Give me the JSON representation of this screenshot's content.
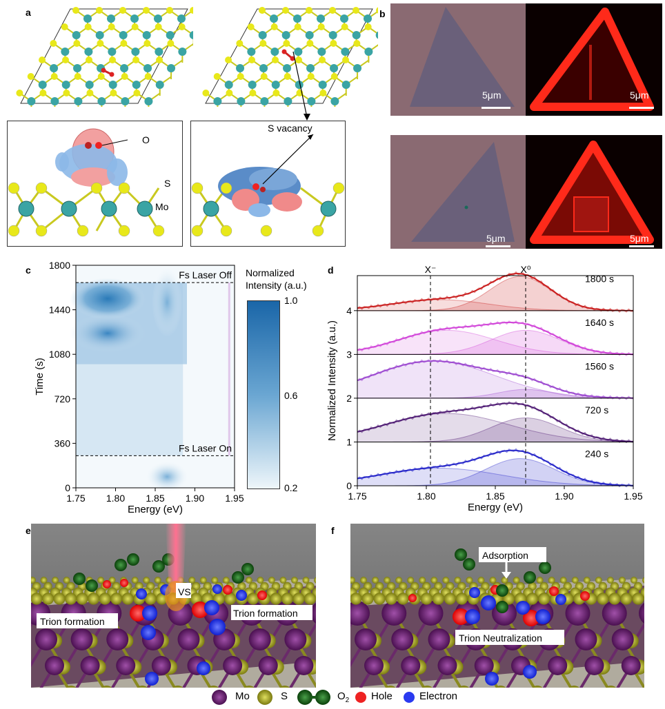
{
  "panels": {
    "a": {
      "label": "a",
      "oxygen_label": "O",
      "sulfur_label": "S",
      "mo_label": "Mo",
      "vacancy_label": "S vacancy"
    },
    "b": {
      "label": "b",
      "scale_bar": "5μm"
    },
    "c": {
      "label": "c",
      "laser_off": "Fs Laser Off",
      "laser_on": "Fs Laser On",
      "colorbar_title_1": "Normalized",
      "colorbar_title_2": "Intensity (a.u.)",
      "colorbar_ticks": [
        "1.0",
        "0.6",
        "0.2"
      ]
    },
    "d": {
      "label": "d",
      "peak_labels": [
        "X⁻",
        "X⁰"
      ],
      "time_labels": [
        "1800 s",
        "1640 s",
        "1560 s",
        "720 s",
        "240 s"
      ]
    },
    "e": {
      "label": "e",
      "vs_label": "VS",
      "trion_left": "Trion formation",
      "trion_right": "Trion formation"
    },
    "f": {
      "label": "f",
      "adsorption": "Adsorption",
      "neutralization": "Trion Neutralization"
    }
  },
  "legend": {
    "mo": "Mo",
    "s": "S",
    "o2": "O2",
    "hole": "Hole",
    "electron": "Electron"
  },
  "colors": {
    "mo": "#7a2a7c",
    "s": "#b8b82a",
    "o2": "#1f6a1f",
    "hole": "#ee2222",
    "electron": "#2a3af0"
  },
  "chart_data": [
    {
      "type": "heatmap",
      "xlabel": "Energy (eV)",
      "ylabel": "Time (s)",
      "xlim": [
        1.75,
        1.95
      ],
      "ylim": [
        0,
        1800
      ],
      "x_ticks": [
        "1.75",
        "1.80",
        "1.85",
        "1.90",
        "1.95"
      ],
      "y_ticks": [
        "0",
        "360",
        "720",
        "1080",
        "1440",
        "1800"
      ],
      "colorbar_range": [
        0.2,
        1.0
      ],
      "laser_on_time": 260,
      "laser_off_time": 1660
    },
    {
      "type": "line",
      "xlabel": "Energy (eV)",
      "ylabel": "Normalized Intensity (a.u.)",
      "xlim": [
        1.75,
        1.95
      ],
      "ylim": [
        0,
        4.8
      ],
      "x_ticks": [
        "1.75",
        "1.80",
        "1.85",
        "1.90",
        "1.95"
      ],
      "y_ticks": [
        "0",
        "1",
        "2",
        "3",
        "4"
      ],
      "x_minus_energy": 1.803,
      "x0_energy": 1.872,
      "series": [
        {
          "name": "1800 s",
          "offset": 4,
          "color": "#c81818",
          "trion": {
            "center": 1.81,
            "amp": 0.25,
            "width": 0.035
          },
          "exciton": {
            "center": 1.868,
            "amp": 0.78,
            "width": 0.022
          }
        },
        {
          "name": "1640 s",
          "offset": 3,
          "color": "#d040d8",
          "trion": {
            "center": 1.815,
            "amp": 0.55,
            "width": 0.035
          },
          "exciton": {
            "center": 1.872,
            "amp": 0.55,
            "width": 0.025
          }
        },
        {
          "name": "1560 s",
          "offset": 2,
          "color": "#9a44cf",
          "trion": {
            "center": 1.805,
            "amp": 0.85,
            "width": 0.045
          },
          "exciton": {
            "center": 1.872,
            "amp": 0.2,
            "width": 0.02
          }
        },
        {
          "name": "720 s",
          "offset": 1,
          "color": "#4a1570",
          "trion": {
            "center": 1.815,
            "amp": 0.65,
            "width": 0.045
          },
          "exciton": {
            "center": 1.872,
            "amp": 0.55,
            "width": 0.025
          }
        },
        {
          "name": "240 s",
          "offset": 0,
          "color": "#2020c8",
          "trion": {
            "center": 1.81,
            "amp": 0.4,
            "width": 0.045
          },
          "exciton": {
            "center": 1.868,
            "amp": 0.62,
            "width": 0.025
          }
        }
      ]
    }
  ]
}
